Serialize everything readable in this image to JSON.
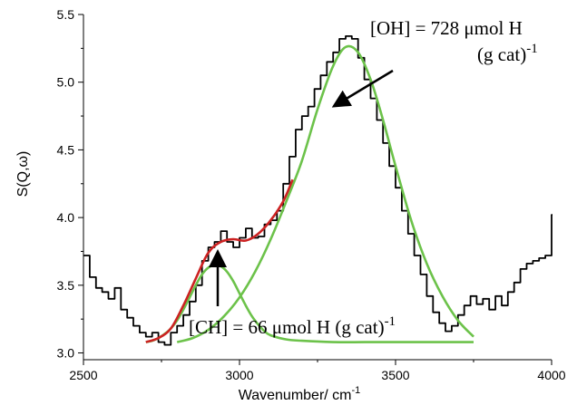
{
  "chart_data": {
    "type": "line",
    "title": "",
    "xlabel": "Wavenumber/ cm",
    "xlabel_sup": "-1",
    "ylabel": "S(Q,ω)",
    "xlim": [
      2500,
      4000
    ],
    "ylim": [
      2.95,
      5.5
    ],
    "x_ticks": [
      2500,
      3000,
      3500,
      4000
    ],
    "y_ticks": [
      3.0,
      3.5,
      4.0,
      4.5,
      5.0,
      5.5
    ],
    "grid": false,
    "series": [
      {
        "name": "",
        "style": "step",
        "color": "#000000",
        "x": [
          2500,
          2520,
          2540,
          2560,
          2580,
          2600,
          2620,
          2640,
          2660,
          2680,
          2700,
          2720,
          2740,
          2760,
          2780,
          2800,
          2820,
          2840,
          2860,
          2880,
          2900,
          2920,
          2940,
          2960,
          2980,
          3000,
          3020,
          3040,
          3060,
          3080,
          3100,
          3120,
          3140,
          3160,
          3180,
          3200,
          3220,
          3240,
          3260,
          3280,
          3300,
          3320,
          3340,
          3360,
          3380,
          3400,
          3420,
          3440,
          3460,
          3480,
          3500,
          3520,
          3540,
          3560,
          3580,
          3600,
          3620,
          3640,
          3660,
          3680,
          3700,
          3720,
          3740,
          3760,
          3780,
          3800,
          3820,
          3840,
          3860,
          3880,
          3900,
          3920,
          3940,
          3960,
          3980,
          4000
        ],
        "y": [
          3.72,
          3.56,
          3.48,
          3.45,
          3.4,
          3.48,
          3.32,
          3.26,
          3.2,
          3.15,
          3.12,
          3.15,
          3.08,
          3.06,
          3.15,
          3.2,
          3.28,
          3.38,
          3.5,
          3.68,
          3.78,
          3.82,
          3.9,
          3.82,
          3.78,
          3.85,
          3.92,
          3.85,
          3.86,
          3.95,
          3.98,
          4.05,
          4.25,
          4.45,
          4.65,
          4.75,
          4.82,
          4.95,
          5.05,
          5.15,
          5.22,
          5.32,
          5.34,
          5.32,
          5.18,
          5.02,
          4.88,
          4.72,
          4.55,
          4.38,
          4.22,
          4.05,
          3.88,
          3.72,
          3.58,
          3.42,
          3.3,
          3.22,
          3.16,
          3.2,
          3.28,
          3.35,
          3.42,
          3.36,
          3.4,
          3.32,
          3.42,
          3.35,
          3.45,
          3.52,
          3.62,
          3.66,
          3.68,
          3.7,
          3.72,
          4.02
        ]
      },
      {
        "name": "",
        "style": "smooth",
        "color": "#6cc24a",
        "role": "CH component",
        "x": [
          2700,
          2720,
          2740,
          2760,
          2780,
          2800,
          2820,
          2840,
          2860,
          2880,
          2900,
          2920,
          2940,
          2960,
          2980,
          3000,
          3020,
          3040,
          3060,
          3080,
          3100,
          3150,
          3200,
          3300,
          3400,
          3500,
          3600,
          3700,
          3750
        ],
        "y": [
          3.08,
          3.09,
          3.11,
          3.14,
          3.18,
          3.24,
          3.32,
          3.41,
          3.5,
          3.58,
          3.63,
          3.65,
          3.64,
          3.6,
          3.53,
          3.44,
          3.35,
          3.27,
          3.21,
          3.16,
          3.13,
          3.1,
          3.09,
          3.08,
          3.08,
          3.08,
          3.08,
          3.08,
          3.08
        ]
      },
      {
        "name": "",
        "style": "smooth",
        "color": "#6cc24a",
        "role": "OH component",
        "x": [
          2800,
          2850,
          2900,
          2950,
          3000,
          3050,
          3100,
          3150,
          3200,
          3250,
          3300,
          3340,
          3380,
          3420,
          3460,
          3500,
          3550,
          3600,
          3650,
          3700,
          3750
        ],
        "y": [
          3.08,
          3.11,
          3.17,
          3.27,
          3.41,
          3.6,
          3.84,
          4.12,
          4.42,
          4.8,
          5.12,
          5.26,
          5.22,
          5.02,
          4.72,
          4.38,
          3.98,
          3.66,
          3.42,
          3.24,
          3.12
        ]
      },
      {
        "name": "",
        "style": "smooth",
        "color": "#cc2222",
        "role": "CH + OH sum",
        "x": [
          2700,
          2740,
          2780,
          2820,
          2860,
          2900,
          2940,
          2980,
          3020,
          3060,
          3100,
          3140,
          3170
        ],
        "y": [
          3.08,
          3.11,
          3.18,
          3.35,
          3.55,
          3.74,
          3.82,
          3.84,
          3.83,
          3.88,
          3.98,
          4.12,
          4.28
        ]
      }
    ],
    "annotations": [
      {
        "id": "oh",
        "text": "[OH] = 728 μmol H",
        "text2": "(g cat)",
        "sup": "-1"
      },
      {
        "id": "ch",
        "text": "[CH] = 66 μmol H (g cat)",
        "sup": "-1"
      }
    ]
  }
}
